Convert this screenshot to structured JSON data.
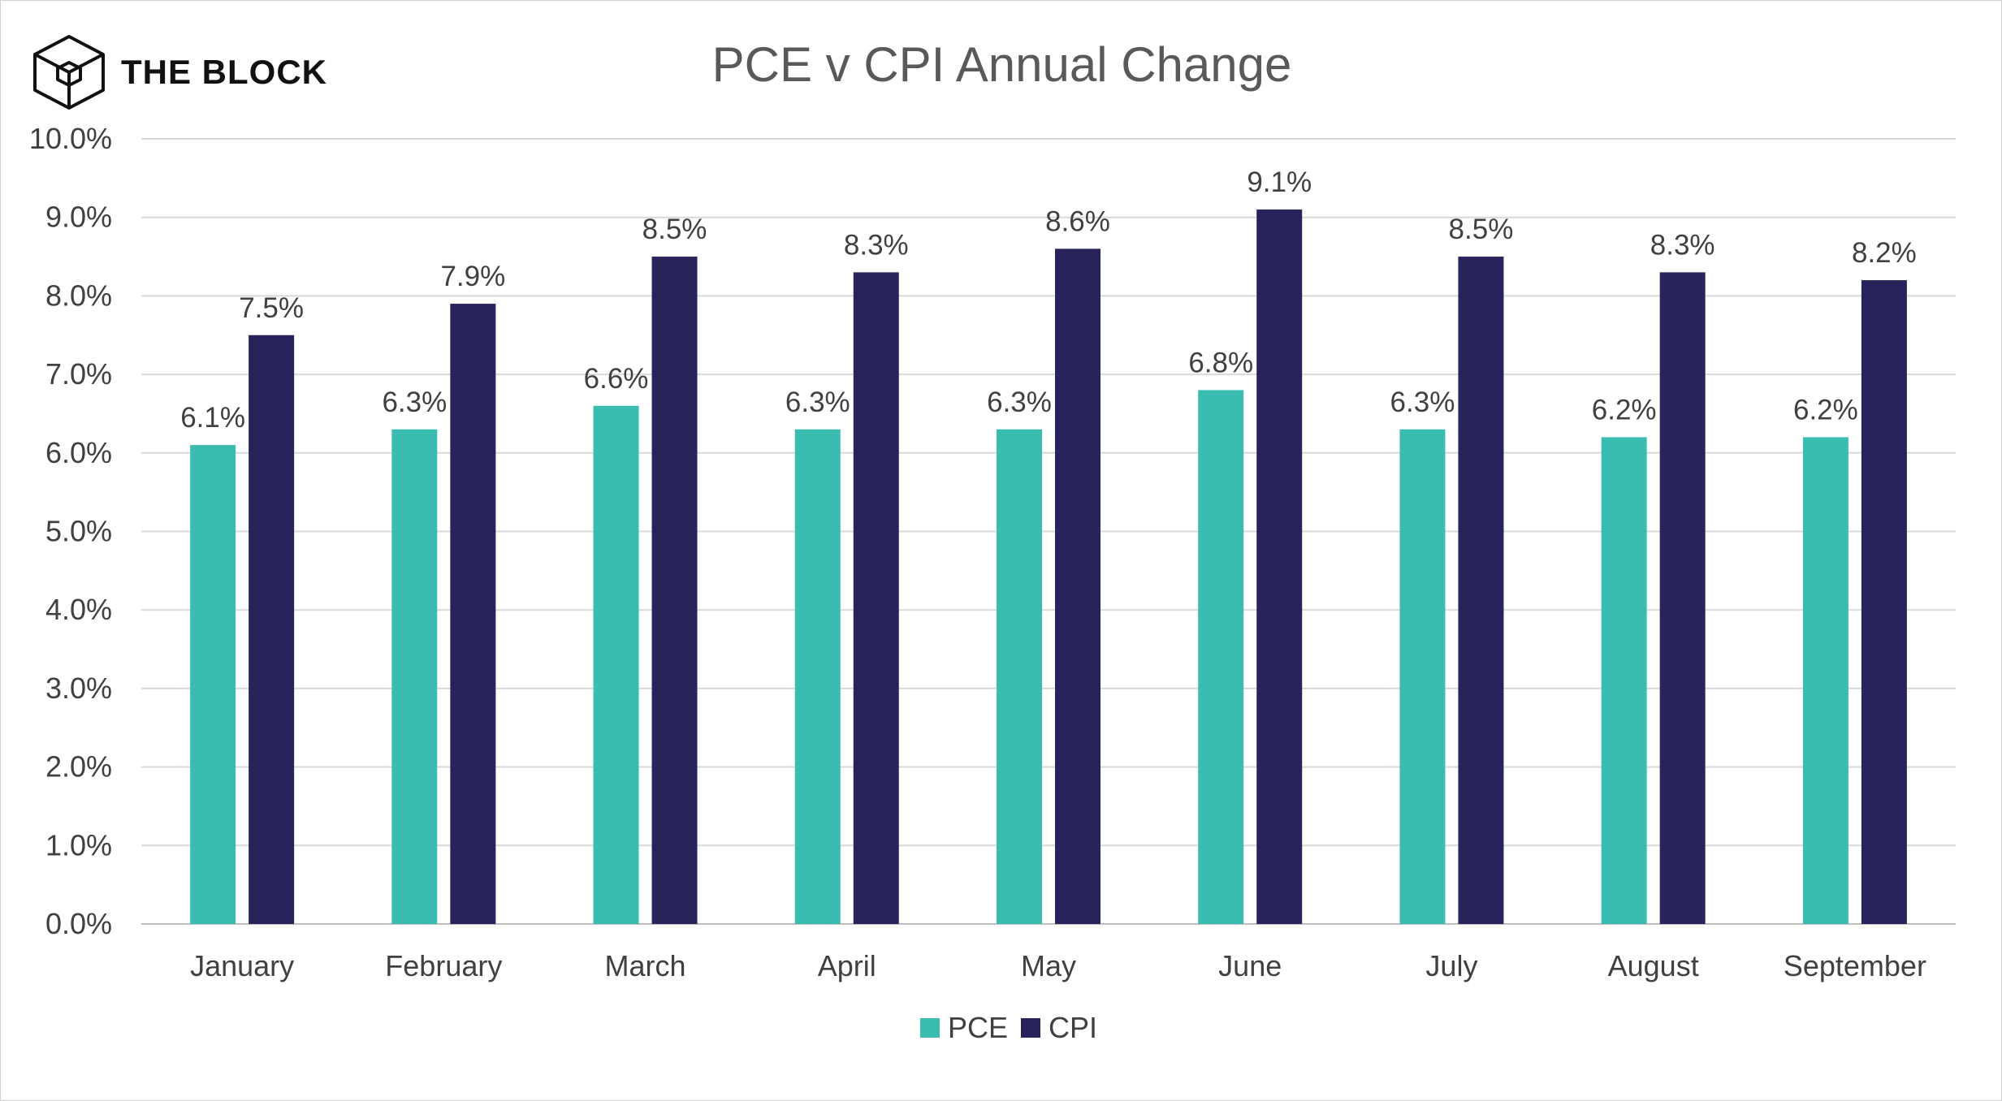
{
  "branding": {
    "logo_text": "THE BLOCK"
  },
  "colors": {
    "pce": "#3bbcb1",
    "cpi": "#29235c",
    "grid": "#d9d9d9",
    "text": "#404040"
  },
  "chart_data": {
    "type": "bar",
    "title": "PCE v CPI Annual Change",
    "xlabel": "",
    "ylabel": "",
    "categories": [
      "January",
      "February",
      "March",
      "April",
      "May",
      "June",
      "July",
      "August",
      "September"
    ],
    "series": [
      {
        "name": "PCE",
        "values": [
          6.1,
          6.3,
          6.6,
          6.3,
          6.3,
          6.8,
          6.3,
          6.2,
          6.2
        ],
        "labels": [
          "6.1%",
          "6.3%",
          "6.6%",
          "6.3%",
          "6.3%",
          "6.8%",
          "6.3%",
          "6.2%",
          "6.2%"
        ]
      },
      {
        "name": "CPI",
        "values": [
          7.5,
          7.9,
          8.5,
          8.3,
          8.6,
          9.1,
          8.5,
          8.3,
          8.2
        ],
        "labels": [
          "7.5%",
          "7.9%",
          "8.5%",
          "8.3%",
          "8.6%",
          "9.1%",
          "8.5%",
          "8.3%",
          "8.2%"
        ]
      }
    ],
    "ylim": [
      0,
      10
    ],
    "yticks": [
      "0.0%",
      "1.0%",
      "2.0%",
      "3.0%",
      "4.0%",
      "5.0%",
      "6.0%",
      "7.0%",
      "8.0%",
      "9.0%",
      "10.0%"
    ],
    "grid": true,
    "legend": "bottom-center"
  }
}
